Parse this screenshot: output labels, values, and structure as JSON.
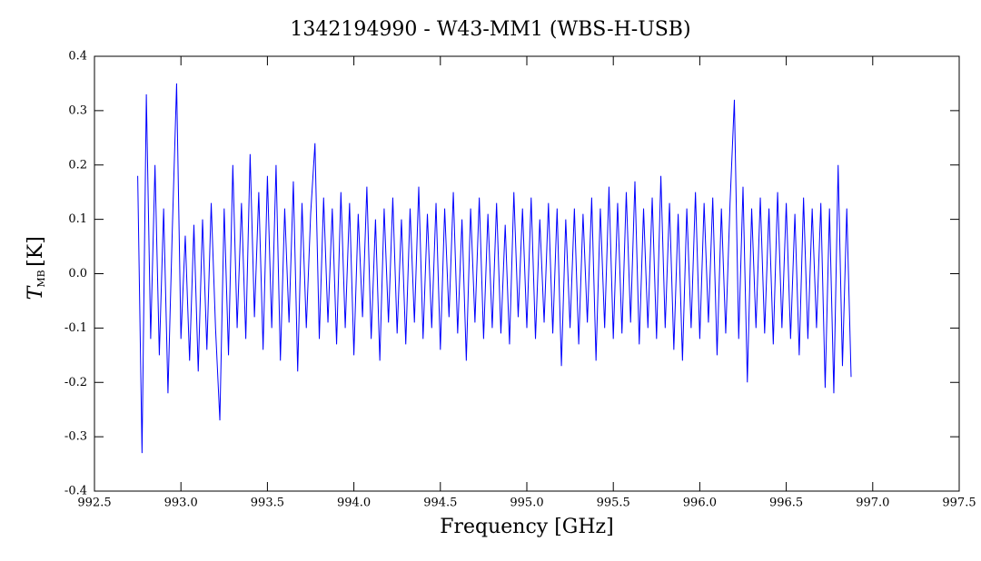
{
  "chart_data": {
    "type": "line",
    "title": "1342194990 - W43-MM1 (WBS-H-USB)",
    "x_label": "Frequency [GHz]",
    "y_label_symbol": "T",
    "y_label_subscript": "MB",
    "y_label_unit": "[K]",
    "color": "#0000ff",
    "xlim": [
      992.5,
      997.5
    ],
    "xticks": [
      992.5,
      {
        "value": 993,
        "label": "993.0"
      },
      993.5,
      {
        "value": 994,
        "label": "994.0"
      },
      994.5,
      {
        "value": 995,
        "label": "995.0"
      },
      995.5,
      {
        "value": 996,
        "label": "996.0"
      },
      996.5,
      {
        "value": 997,
        "label": "997.0"
      },
      997.5
    ],
    "ylim": [
      -0.4,
      0.4
    ],
    "yticks": [
      -0.4,
      -0.3,
      -0.2,
      -0.1,
      {
        "value": 0,
        "label": "0.0"
      },
      0.1,
      0.2,
      0.3,
      0.4
    ],
    "x": [
      992.75,
      992.775,
      992.8,
      992.825,
      992.85,
      992.875,
      992.9,
      992.925,
      992.95,
      992.975,
      993.0,
      993.025,
      993.05,
      993.075,
      993.1,
      993.125,
      993.15,
      993.175,
      993.2,
      993.225,
      993.25,
      993.275,
      993.3,
      993.325,
      993.35,
      993.375,
      993.4,
      993.425,
      993.45,
      993.475,
      993.5,
      993.525,
      993.55,
      993.575,
      993.6,
      993.625,
      993.65,
      993.675,
      993.7,
      993.725,
      993.75,
      993.775,
      993.8,
      993.825,
      993.85,
      993.875,
      993.9,
      993.925,
      993.95,
      993.975,
      994.0,
      994.025,
      994.05,
      994.075,
      994.1,
      994.125,
      994.15,
      994.175,
      994.2,
      994.225,
      994.25,
      994.275,
      994.3,
      994.325,
      994.35,
      994.375,
      994.4,
      994.425,
      994.45,
      994.475,
      994.5,
      994.525,
      994.55,
      994.575,
      994.6,
      994.625,
      994.65,
      994.675,
      994.7,
      994.725,
      994.75,
      994.775,
      994.8,
      994.825,
      994.85,
      994.875,
      994.9,
      994.925,
      994.95,
      994.975,
      995.0,
      995.025,
      995.05,
      995.075,
      995.1,
      995.125,
      995.15,
      995.175,
      995.2,
      995.225,
      995.25,
      995.275,
      995.3,
      995.325,
      995.35,
      995.375,
      995.4,
      995.425,
      995.45,
      995.475,
      995.5,
      995.525,
      995.55,
      995.575,
      995.6,
      995.625,
      995.65,
      995.675,
      995.7,
      995.725,
      995.75,
      995.775,
      995.8,
      995.825,
      995.85,
      995.875,
      995.9,
      995.925,
      995.95,
      995.975,
      996.0,
      996.025,
      996.05,
      996.075,
      996.1,
      996.125,
      996.15,
      996.175,
      996.2,
      996.225,
      996.25,
      996.275,
      996.3,
      996.325,
      996.35,
      996.375,
      996.4,
      996.425,
      996.45,
      996.475,
      996.5,
      996.525,
      996.55,
      996.575,
      996.6,
      996.625,
      996.65,
      996.675,
      996.7,
      996.725,
      996.75,
      996.775,
      996.8,
      996.825,
      996.85,
      996.875
    ],
    "values": [
      0.18,
      -0.33,
      0.33,
      -0.12,
      0.2,
      -0.15,
      0.12,
      -0.22,
      0.08,
      0.35,
      -0.12,
      0.07,
      -0.16,
      0.09,
      -0.18,
      0.1,
      -0.14,
      0.13,
      -0.1,
      -0.27,
      0.12,
      -0.15,
      0.2,
      -0.1,
      0.13,
      -0.12,
      0.22,
      -0.08,
      0.15,
      -0.14,
      0.18,
      -0.1,
      0.2,
      -0.16,
      0.12,
      -0.09,
      0.17,
      -0.18,
      0.13,
      -0.1,
      0.11,
      0.24,
      -0.12,
      0.14,
      -0.09,
      0.12,
      -0.13,
      0.15,
      -0.1,
      0.13,
      -0.15,
      0.11,
      -0.08,
      0.16,
      -0.12,
      0.1,
      -0.16,
      0.12,
      -0.09,
      0.14,
      -0.11,
      0.1,
      -0.13,
      0.12,
      -0.09,
      0.16,
      -0.12,
      0.11,
      -0.1,
      0.13,
      -0.14,
      0.12,
      -0.08,
      0.15,
      -0.11,
      0.1,
      -0.16,
      0.12,
      -0.09,
      0.14,
      -0.12,
      0.11,
      -0.1,
      0.13,
      -0.11,
      0.09,
      -0.13,
      0.15,
      -0.08,
      0.12,
      -0.1,
      0.14,
      -0.12,
      0.1,
      -0.09,
      0.13,
      -0.11,
      0.12,
      -0.17,
      0.1,
      -0.1,
      0.12,
      -0.13,
      0.11,
      -0.09,
      0.14,
      -0.16,
      0.12,
      -0.1,
      0.16,
      -0.12,
      0.13,
      -0.11,
      0.15,
      -0.09,
      0.17,
      -0.13,
      0.12,
      -0.1,
      0.14,
      -0.12,
      0.18,
      -0.1,
      0.13,
      -0.14,
      0.11,
      -0.16,
      0.12,
      -0.1,
      0.15,
      -0.12,
      0.13,
      -0.09,
      0.14,
      -0.15,
      0.12,
      -0.11,
      0.13,
      0.32,
      -0.12,
      0.16,
      -0.2,
      0.12,
      -0.1,
      0.14,
      -0.11,
      0.12,
      -0.13,
      0.15,
      -0.1,
      0.13,
      -0.12,
      0.11,
      -0.15,
      0.14,
      -0.12,
      0.12,
      -0.1,
      0.13,
      -0.21,
      0.12,
      -0.22,
      0.2,
      -0.17,
      0.12,
      -0.19
    ]
  }
}
